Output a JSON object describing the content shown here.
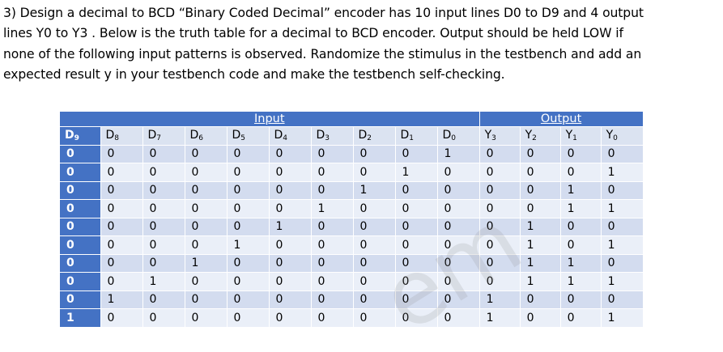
{
  "question": {
    "lines": [
      "3) Design a decimal to BCD “Binary Coded Decimal” encoder has 10 input lines D0 to D9 and 4 output",
      "lines Y0 to Y3 . Below is the truth table for a decimal to BCD encoder. Output should be held LOW if",
      "none of the following input patterns is observed. Randomize the stimulus in the testbench and add an",
      "expected result y in your testbench code and make the testbench self-checking."
    ]
  },
  "table": {
    "input_group_label": "Input",
    "output_group_label": "Output",
    "headers": [
      {
        "base": "D",
        "sub": "9"
      },
      {
        "base": "D",
        "sub": "8"
      },
      {
        "base": "D",
        "sub": "7"
      },
      {
        "base": "D",
        "sub": "6"
      },
      {
        "base": "D",
        "sub": "5"
      },
      {
        "base": "D",
        "sub": "4"
      },
      {
        "base": "D",
        "sub": "3"
      },
      {
        "base": "D",
        "sub": "2"
      },
      {
        "base": "D",
        "sub": "1"
      },
      {
        "base": "D",
        "sub": "0"
      },
      {
        "base": "Y",
        "sub": "3"
      },
      {
        "base": "Y",
        "sub": "2"
      },
      {
        "base": "Y",
        "sub": "1"
      },
      {
        "base": "Y",
        "sub": "0"
      }
    ],
    "rows": [
      [
        "0",
        "0",
        "0",
        "0",
        "0",
        "0",
        "0",
        "0",
        "0",
        "1",
        "0",
        "0",
        "0",
        "0"
      ],
      [
        "0",
        "0",
        "0",
        "0",
        "0",
        "0",
        "0",
        "0",
        "1",
        "0",
        "0",
        "0",
        "0",
        "1"
      ],
      [
        "0",
        "0",
        "0",
        "0",
        "0",
        "0",
        "0",
        "1",
        "0",
        "0",
        "0",
        "0",
        "1",
        "0"
      ],
      [
        "0",
        "0",
        "0",
        "0",
        "0",
        "0",
        "1",
        "0",
        "0",
        "0",
        "0",
        "0",
        "1",
        "1"
      ],
      [
        "0",
        "0",
        "0",
        "0",
        "0",
        "1",
        "0",
        "0",
        "0",
        "0",
        "0",
        "1",
        "0",
        "0"
      ],
      [
        "0",
        "0",
        "0",
        "0",
        "1",
        "0",
        "0",
        "0",
        "0",
        "0",
        "0",
        "1",
        "0",
        "1"
      ],
      [
        "0",
        "0",
        "0",
        "1",
        "0",
        "0",
        "0",
        "0",
        "0",
        "0",
        "0",
        "1",
        "1",
        "0"
      ],
      [
        "0",
        "0",
        "1",
        "0",
        "0",
        "0",
        "0",
        "0",
        "0",
        "0",
        "0",
        "1",
        "1",
        "1"
      ],
      [
        "0",
        "1",
        "0",
        "0",
        "0",
        "0",
        "0",
        "0",
        "0",
        "0",
        "1",
        "0",
        "0",
        "0"
      ],
      [
        "1",
        "0",
        "0",
        "0",
        "0",
        "0",
        "0",
        "0",
        "0",
        "0",
        "1",
        "0",
        "0",
        "1"
      ]
    ]
  },
  "watermark": "em"
}
